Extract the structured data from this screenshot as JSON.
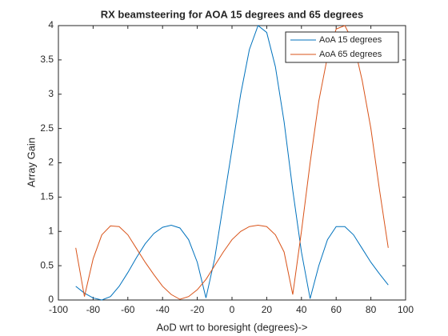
{
  "chart_data": {
    "type": "line",
    "title": "RX beamsteering for AOA 15 degrees and 65 degrees",
    "xlabel": "AoD wrt to boresight (degrees)->",
    "ylabel": "Array Gain",
    "x": [
      -90,
      -85,
      -80,
      -75,
      -70,
      -65,
      -60,
      -55,
      -50,
      -45,
      -40,
      -35,
      -30,
      -25,
      -20,
      -15,
      -10,
      -5,
      0,
      5,
      10,
      15,
      20,
      25,
      30,
      35,
      40,
      45,
      50,
      55,
      60,
      65,
      70,
      75,
      80,
      85,
      90
    ],
    "series": [
      {
        "name": "AoA 15 degrees",
        "color": "#0072bd",
        "values": [
          0.2,
          0.1,
          0.03,
          0.0,
          0.05,
          0.2,
          0.4,
          0.62,
          0.82,
          0.97,
          1.06,
          1.09,
          1.05,
          0.88,
          0.55,
          0.03,
          0.6,
          1.4,
          2.2,
          3.0,
          3.65,
          4.0,
          3.9,
          3.4,
          2.6,
          1.6,
          0.7,
          0.02,
          0.5,
          0.88,
          1.07,
          1.07,
          0.95,
          0.75,
          0.55,
          0.38,
          0.22
        ]
      },
      {
        "name": "AoA 65 degrees",
        "color": "#d95319",
        "values": [
          0.76,
          0.05,
          0.6,
          0.95,
          1.08,
          1.07,
          0.95,
          0.75,
          0.55,
          0.37,
          0.2,
          0.08,
          0.01,
          0.05,
          0.15,
          0.3,
          0.5,
          0.7,
          0.88,
          1.0,
          1.07,
          1.09,
          1.07,
          0.95,
          0.7,
          0.08,
          1.0,
          2.0,
          2.9,
          3.55,
          3.95,
          4.0,
          3.75,
          3.2,
          2.5,
          1.6,
          0.76
        ]
      }
    ],
    "xlim": [
      -100,
      100
    ],
    "xticks": [
      -100,
      -80,
      -60,
      -40,
      -20,
      0,
      20,
      40,
      60,
      80,
      100
    ],
    "ylim": [
      0,
      4
    ],
    "yticks": [
      0,
      0.5,
      1,
      1.5,
      2,
      2.5,
      3,
      3.5,
      4
    ],
    "legend": "northeast"
  }
}
